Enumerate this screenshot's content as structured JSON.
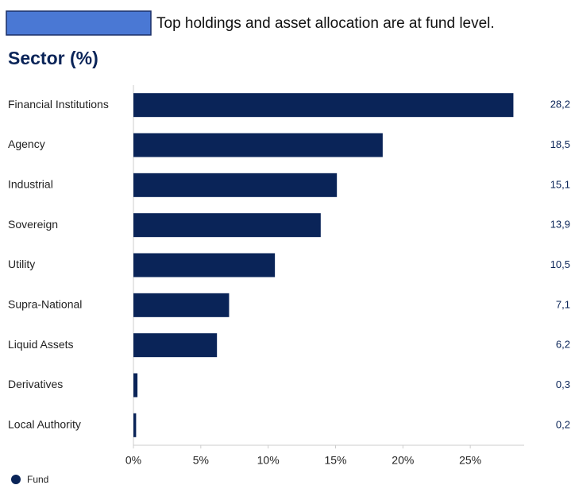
{
  "note_text": "Top holdings and asset allocation are at fund level.",
  "chart_data": {
    "type": "hbar",
    "title": "Sector (%)",
    "categories": [
      "Financial Institutions",
      "Agency",
      "Industrial",
      "Sovereign",
      "Utility",
      "Supra-National",
      "Liquid Assets",
      "Derivatives",
      "Local Authority"
    ],
    "series": [
      {
        "name": "Fund",
        "color": "#0a2458",
        "values": [
          28.2,
          18.5,
          15.1,
          13.9,
          10.5,
          7.1,
          6.2,
          0.3,
          0.2
        ],
        "value_labels": [
          "28,2",
          "18,5",
          "15,1",
          "13,9",
          "10,5",
          "7,1",
          "6,2",
          "0,3",
          "0,2"
        ]
      }
    ],
    "xlim": [
      0,
      29
    ],
    "xticks": [
      {
        "value": 0,
        "label": "0%"
      },
      {
        "value": 5,
        "label": "5%"
      },
      {
        "value": 10,
        "label": "10%"
      },
      {
        "value": 15,
        "label": "15%"
      },
      {
        "value": 20,
        "label": "20%"
      },
      {
        "value": 25,
        "label": "25%"
      }
    ],
    "legend": "bottom-left"
  }
}
